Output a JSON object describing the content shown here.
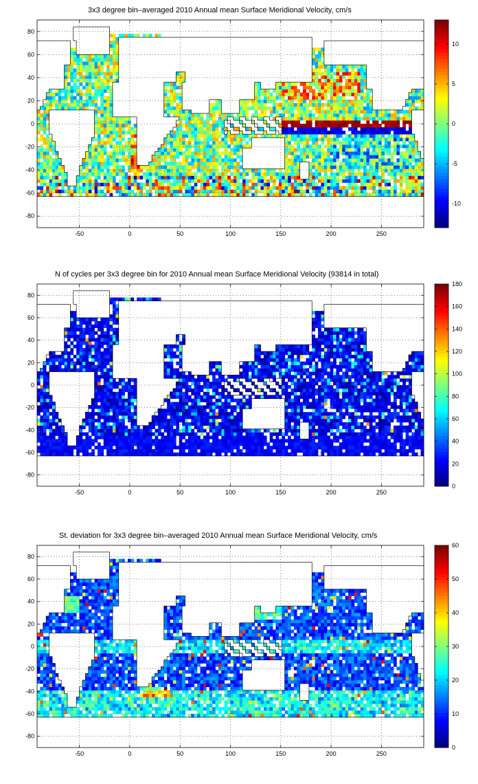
{
  "panels": [
    {
      "title": "3x3 degree bin–averaged 2010 Annual mean Surface Meridional Velocity, cm/s",
      "colormap": "jet",
      "colorbar": {
        "range": [
          -13,
          13
        ],
        "ticks": [
          -10,
          -5,
          0,
          5,
          10
        ]
      },
      "field": "meridional_velocity"
    },
    {
      "title": "N of cycles per 3x3 degree bin for 2010 Annual mean Surface Meridional Velocity (93814 in total)",
      "colormap": "jet",
      "colorbar": {
        "range": [
          0,
          180
        ],
        "ticks": [
          0,
          20,
          40,
          60,
          80,
          100,
          120,
          140,
          160,
          180
        ]
      },
      "field": "cycle_count"
    },
    {
      "title": "St. deviation for 3x3 degree bin–averaged 2010 Annual mean Surface Meridional Velocity, cm/s",
      "colormap": "jet",
      "colorbar": {
        "range": [
          0,
          60
        ],
        "ticks": [
          0,
          10,
          20,
          30,
          40,
          50,
          60
        ]
      },
      "field": "std_deviation"
    }
  ],
  "chart_data": [
    {
      "type": "heatmap",
      "title": "3x3 degree bin–averaged 2010 Annual mean Surface Meridional Velocity, cm/s",
      "xlim": [
        -92,
        292
      ],
      "ylim": [
        -90,
        90
      ],
      "xticks": [
        -50,
        0,
        50,
        100,
        150,
        200,
        250
      ],
      "yticks": [
        -80,
        -60,
        -40,
        -20,
        0,
        20,
        40,
        60,
        80
      ],
      "grid": true,
      "colorbar_range": [
        -13,
        13
      ]
    },
    {
      "type": "heatmap",
      "title": "N of cycles per 3x3 degree bin for 2010 Annual mean Surface Meridional Velocity (93814 in total)",
      "xlim": [
        -92,
        292
      ],
      "ylim": [
        -90,
        90
      ],
      "xticks": [
        -50,
        0,
        50,
        100,
        150,
        200,
        250
      ],
      "yticks": [
        -80,
        -60,
        -40,
        -20,
        0,
        20,
        40,
        60,
        80
      ],
      "grid": true,
      "colorbar_range": [
        0,
        180
      ]
    },
    {
      "type": "heatmap",
      "title": "St. deviation for 3x3 degree bin–averaged 2010 Annual mean Surface Meridional Velocity, cm/s",
      "xlim": [
        -92,
        292
      ],
      "ylim": [
        -90,
        90
      ],
      "xticks": [
        -50,
        0,
        50,
        100,
        150,
        200,
        250
      ],
      "yticks": [
        -80,
        -60,
        -40,
        -20,
        0,
        20,
        40,
        60,
        80
      ],
      "grid": true,
      "colorbar_range": [
        0,
        60
      ]
    }
  ]
}
